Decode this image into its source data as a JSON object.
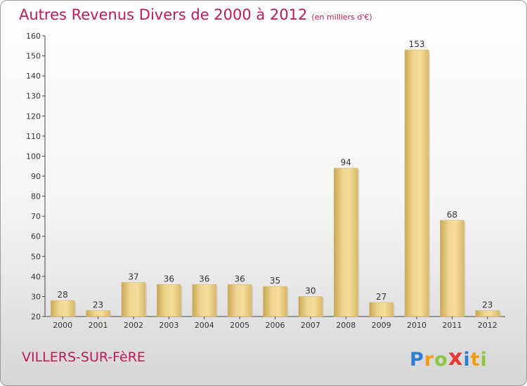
{
  "chart_data": {
    "type": "bar",
    "title": "Autres Revenus Divers de 2000 à 2012",
    "subtitle": "(en milliers d'€)",
    "categories": [
      "2000",
      "2001",
      "2002",
      "2003",
      "2004",
      "2005",
      "2006",
      "2007",
      "2008",
      "2009",
      "2010",
      "2011",
      "2012"
    ],
    "values": [
      28,
      23,
      37,
      36,
      36,
      36,
      35,
      30,
      94,
      27,
      153,
      68,
      23
    ],
    "ylim": [
      20,
      160
    ],
    "yticks": [
      20,
      30,
      40,
      50,
      60,
      70,
      80,
      90,
      100,
      110,
      120,
      130,
      140,
      150,
      160
    ],
    "grid": false,
    "bar_color": "#e8c879",
    "title_color": "#c2185b"
  },
  "footer": {
    "commune": "VILLERS-SUR-FèRE",
    "logo": {
      "letters": [
        {
          "char": "P",
          "color": "#2f7dd1"
        },
        {
          "char": "r",
          "color": "#f39c12"
        },
        {
          "char": "o",
          "color": "#8dc63f"
        },
        {
          "char": "x",
          "color": "#e53935"
        },
        {
          "char": "i",
          "color": "#2f7dd1"
        },
        {
          "char": "t",
          "color": "#f39c12"
        },
        {
          "char": "i",
          "color": "#8dc63f"
        }
      ]
    }
  }
}
